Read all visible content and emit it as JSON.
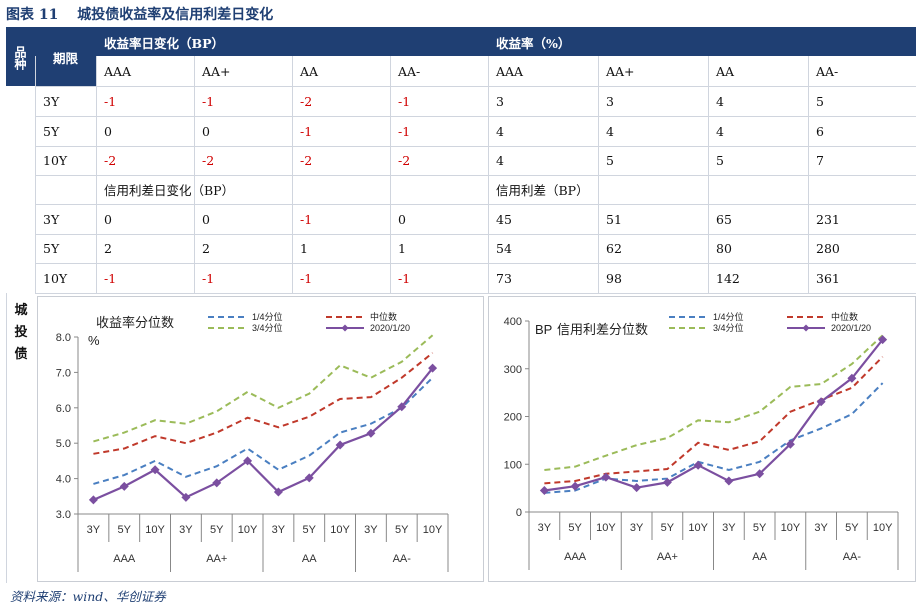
{
  "title": {
    "label": "图表",
    "number": "11",
    "text": "城投债收益率及信用利差日变化"
  },
  "table": {
    "corner_col1": "品种",
    "corner_col2": "期限",
    "group1_header": "收益率日变化（BP）",
    "group2_header": "收益率（%）",
    "ratings": [
      "AAA",
      "AA+",
      "AA",
      "AA-"
    ],
    "section2_left": "信用利差日变化（BP）",
    "section2_right": "信用利差（BP）",
    "row_label": "城投债",
    "rows_section1": [
      {
        "term": "3Y",
        "change": [
          "-1",
          "-1",
          "-2",
          "-1"
        ],
        "level": [
          "3",
          "3",
          "4",
          "5"
        ]
      },
      {
        "term": "5Y",
        "change": [
          "0",
          "0",
          "-1",
          "-1"
        ],
        "level": [
          "4",
          "4",
          "4",
          "6"
        ]
      },
      {
        "term": "10Y",
        "change": [
          "-2",
          "-2",
          "-2",
          "-2"
        ],
        "level": [
          "4",
          "5",
          "5",
          "7"
        ]
      }
    ],
    "rows_section2": [
      {
        "term": "3Y",
        "change": [
          "0",
          "0",
          "-1",
          "0"
        ],
        "level": [
          "45",
          "51",
          "65",
          "231"
        ]
      },
      {
        "term": "5Y",
        "change": [
          "2",
          "2",
          "1",
          "1"
        ],
        "level": [
          "54",
          "62",
          "80",
          "280"
        ]
      },
      {
        "term": "10Y",
        "change": [
          "-1",
          "-1",
          "-1",
          "-1"
        ],
        "level": [
          "73",
          "98",
          "142",
          "361"
        ]
      }
    ]
  },
  "chart_data": [
    {
      "type": "line",
      "title": "收益率分位数",
      "ylabel": "%",
      "ylim": [
        3.0,
        8.0
      ],
      "yticks": [
        "3.0",
        "4.0",
        "5.0",
        "6.0",
        "7.0",
        "8.0"
      ],
      "categories": [
        "3Y",
        "5Y",
        "10Y",
        "3Y",
        "5Y",
        "10Y",
        "3Y",
        "5Y",
        "10Y",
        "3Y",
        "5Y",
        "10Y"
      ],
      "groups": [
        "AAA",
        "AA+",
        "AA",
        "AA-"
      ],
      "series": [
        {
          "name": "1/4分位",
          "color": "#4a7fc1",
          "style": "dashed",
          "values": [
            3.85,
            4.1,
            4.5,
            4.05,
            4.35,
            4.85,
            4.25,
            4.65,
            5.3,
            5.55,
            6.0,
            6.85
          ]
        },
        {
          "name": "中位数",
          "color": "#c0392b",
          "style": "dashed",
          "values": [
            4.7,
            4.85,
            5.2,
            5.0,
            5.3,
            5.72,
            5.45,
            5.75,
            6.25,
            6.3,
            6.85,
            7.55
          ]
        },
        {
          "name": "3/4分位",
          "color": "#9bbb59",
          "style": "dashed",
          "values": [
            5.05,
            5.3,
            5.65,
            5.55,
            5.9,
            6.45,
            6.0,
            6.4,
            7.2,
            6.85,
            7.3,
            8.05
          ]
        },
        {
          "name": "2020/1/20",
          "color": "#7b4fa0",
          "style": "solid-diamond",
          "values": [
            3.4,
            3.78,
            4.25,
            3.47,
            3.88,
            4.5,
            3.62,
            4.02,
            4.95,
            5.28,
            6.03,
            7.12
          ]
        }
      ]
    },
    {
      "type": "line",
      "title": "信用利差分位数",
      "ylabel": "BP",
      "ylim": [
        0,
        400
      ],
      "yticks": [
        "0",
        "100",
        "200",
        "300",
        "400"
      ],
      "categories": [
        "3Y",
        "5Y",
        "10Y",
        "3Y",
        "5Y",
        "10Y",
        "3Y",
        "5Y",
        "10Y",
        "3Y",
        "5Y",
        "10Y"
      ],
      "groups": [
        "AAA",
        "AA+",
        "AA",
        "AA-"
      ],
      "series": [
        {
          "name": "1/4分位",
          "color": "#4a7fc1",
          "style": "dashed",
          "values": [
            40,
            45,
            70,
            65,
            70,
            105,
            88,
            105,
            150,
            175,
            205,
            270
          ]
        },
        {
          "name": "中位数",
          "color": "#c0392b",
          "style": "dashed",
          "values": [
            60,
            65,
            80,
            85,
            90,
            145,
            130,
            148,
            210,
            235,
            260,
            325
          ]
        },
        {
          "name": "3/4分位",
          "color": "#9bbb59",
          "style": "dashed",
          "values": [
            88,
            95,
            118,
            140,
            155,
            192,
            188,
            210,
            262,
            268,
            310,
            370
          ]
        },
        {
          "name": "2020/1/20",
          "color": "#7b4fa0",
          "style": "solid-diamond",
          "values": [
            45,
            54,
            73,
            51,
            62,
            98,
            65,
            80,
            142,
            231,
            280,
            361
          ]
        }
      ]
    }
  ],
  "source": "资料来源：wind、华创证券"
}
